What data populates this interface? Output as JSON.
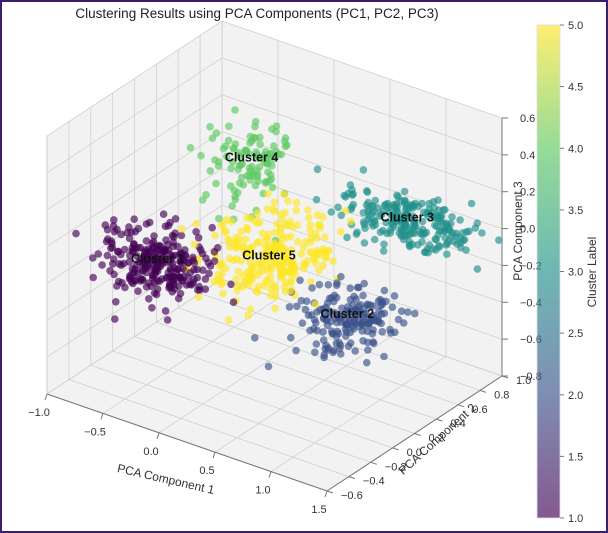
{
  "chart_data": {
    "type": "scatter",
    "projection": "3d",
    "title": "Clustering Results using PCA Components (PC1, PC2, PC3)",
    "xlabel": "PCA Component 1",
    "ylabel": "PCA Component 2",
    "zlabel": "PCA Component 3",
    "xlim": [
      -1.0,
      1.5
    ],
    "ylim": [
      -0.6,
      1.0
    ],
    "zlim": [
      -0.8,
      0.6
    ],
    "x_ticks": [
      "−1.0",
      "−0.5",
      "0.0",
      "0.5",
      "1.0",
      "1.5"
    ],
    "y_ticks": [
      "−0.6",
      "−0.4",
      "−0.2",
      "0.0",
      "0.2",
      "0.4",
      "0.6",
      "0.8",
      "1.0"
    ],
    "z_ticks": [
      "−0.8",
      "−0.6",
      "−0.4",
      "−0.2",
      "0.0",
      "0.2",
      "0.4",
      "0.6"
    ],
    "grid": true,
    "colormap": "viridis",
    "point_alpha": 0.65,
    "colorbar": {
      "label": "Cluster Label",
      "range": [
        1.0,
        5.0
      ],
      "ticks": [
        "1.0",
        "1.5",
        "2.0",
        "2.5",
        "3.0",
        "3.5",
        "4.0",
        "4.5",
        "5.0"
      ]
    },
    "clusters": [
      {
        "label": 1,
        "annotation": "Cluster 1",
        "color": "#440154",
        "center": [
          -0.45,
          -0.15,
          -0.15
        ],
        "spread": [
          0.22,
          0.12,
          0.08
        ],
        "count": 260
      },
      {
        "label": 2,
        "annotation": "Cluster 2",
        "color": "#3b528b",
        "center": [
          0.9,
          0.2,
          -0.3
        ],
        "spread": [
          0.2,
          0.15,
          0.06
        ],
        "count": 180
      },
      {
        "label": 3,
        "annotation": "Cluster 3",
        "color": "#21918c",
        "center": [
          0.8,
          0.85,
          -0.05
        ],
        "spread": [
          0.28,
          0.1,
          0.06
        ],
        "count": 220
      },
      {
        "label": 4,
        "annotation": "Cluster 4",
        "color": "#5ec962",
        "center": [
          -0.15,
          0.4,
          0.25
        ],
        "spread": [
          0.15,
          0.12,
          0.1
        ],
        "count": 110
      },
      {
        "label": 5,
        "annotation": "Cluster 5",
        "color": "#fde725",
        "center": [
          0.25,
          0.15,
          -0.1
        ],
        "spread": [
          0.2,
          0.18,
          0.1
        ],
        "count": 260
      }
    ]
  }
}
